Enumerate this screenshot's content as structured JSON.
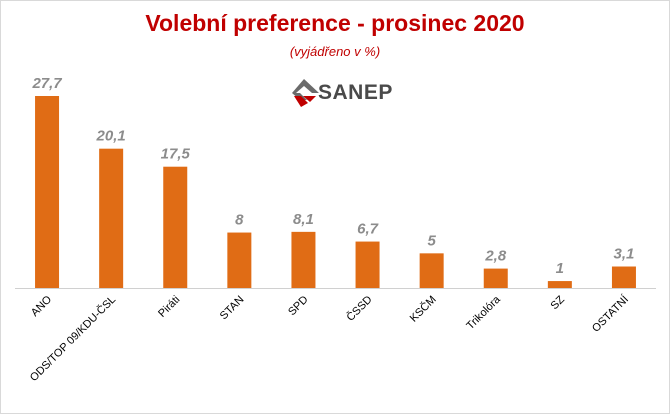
{
  "header": {
    "title": "Volební preference - prosinec 2020",
    "subtitle": "(vyjádřeno v %)"
  },
  "logo": {
    "text": "SANEP",
    "icon": "sanep-logo-icon"
  },
  "colors": {
    "bar": "#e06c15",
    "title": "#c00000",
    "value_label": "#8c8c8c"
  },
  "chart_data": {
    "type": "bar",
    "title": "Volební preference - prosinec 2020",
    "subtitle": "(vyjádřeno v %)",
    "categories": [
      "ANO",
      "ODS/TOP 09/KDU-ČSL",
      "Piráti",
      "STAN",
      "SPD",
      "ČSSD",
      "KSČM",
      "Trikolóra",
      "SZ",
      "OSTATNÍ"
    ],
    "values": [
      27.7,
      20.1,
      17.5,
      8,
      8.1,
      6.7,
      5,
      2.8,
      1,
      3.1
    ],
    "value_labels": [
      "27,7",
      "20,1",
      "17,5",
      "8",
      "8,1",
      "6,7",
      "5",
      "2,8",
      "1",
      "3,1"
    ],
    "xlabel": "",
    "ylabel": "",
    "ylim": [
      0,
      30
    ],
    "grid": false,
    "legend": "none"
  }
}
